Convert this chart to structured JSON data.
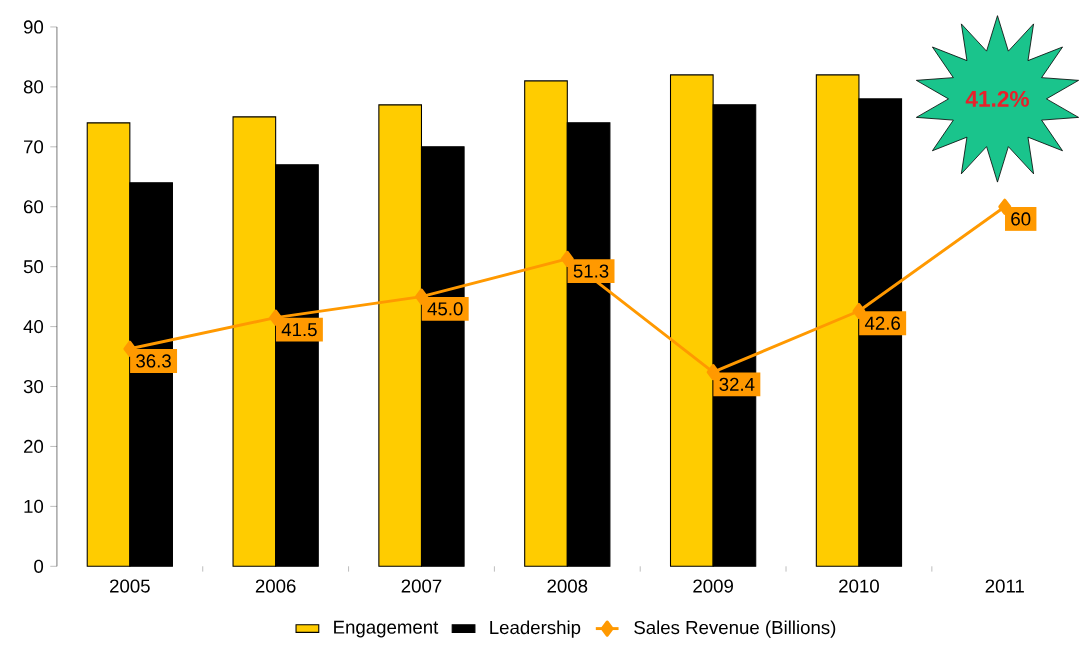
{
  "chart_data": {
    "type": "bar",
    "categories": [
      "2005",
      "2006",
      "2007",
      "2008",
      "2009",
      "2010",
      "2011"
    ],
    "series": [
      {
        "name": "Engagement",
        "color": "#ffcc00",
        "values": [
          74,
          75,
          77,
          81,
          82,
          82,
          null
        ]
      },
      {
        "name": "Leadership",
        "color": "#000000",
        "values": [
          64,
          67,
          70,
          74,
          77,
          78,
          null
        ]
      },
      {
        "name": "Sales Revenue (Billions)",
        "type": "line",
        "color": "#ff9900",
        "marker": "diamond",
        "values": [
          36.3,
          41.5,
          45.0,
          51.3,
          32.4,
          42.6,
          60
        ],
        "value_labels": [
          "36.3",
          "41.5",
          "45.0",
          "51.3",
          "32.4",
          "42.6",
          "60"
        ]
      }
    ],
    "ylim": [
      0,
      90
    ],
    "yticks": [
      0,
      10,
      20,
      30,
      40,
      50,
      60,
      70,
      80,
      90
    ],
    "annotations": [
      "41.2%"
    ],
    "legend": "bottom"
  }
}
